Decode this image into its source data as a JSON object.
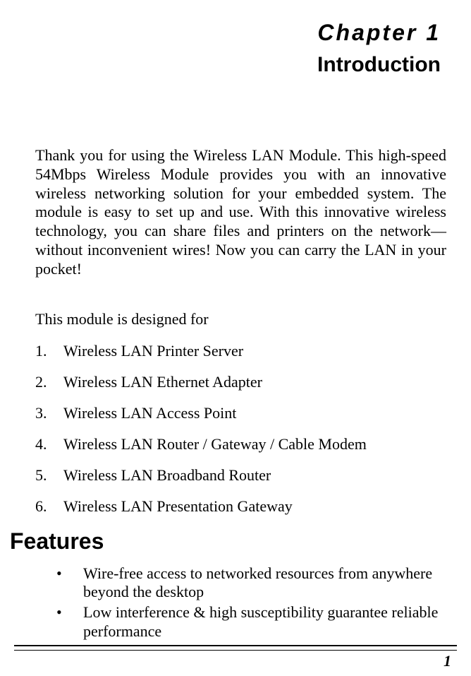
{
  "header": {
    "chapter_label": "Chapter 1",
    "chapter_title": "Introduction"
  },
  "intro": {
    "paragraph": "Thank you for using the Wireless LAN Module. This high-speed 54Mbps Wireless  Module provides you with an innovative wireless networking solution for your embedded system.  The module is easy to set up and use. With this innovative wireless technology, you can share files and printers on the network—without inconvenient wires! Now you can carry the LAN in your pocket!"
  },
  "designed_for": {
    "lead_in": "This module is designed for",
    "items": [
      {
        "num": "1.",
        "text": "Wireless LAN Printer Server"
      },
      {
        "num": "2.",
        "text": "Wireless LAN Ethernet Adapter"
      },
      {
        "num": "3.",
        "text": "Wireless LAN Access Point"
      },
      {
        "num": "4.",
        "text": "Wireless LAN Router / Gateway / Cable Modem"
      },
      {
        "num": "5.",
        "text": "Wireless LAN Broadband Router"
      },
      {
        "num": "6.",
        "text": "Wireless LAN Presentation Gateway"
      }
    ]
  },
  "features": {
    "heading": "Features",
    "bullets": [
      "Wire-free access to networked resources from anywhere beyond the desktop",
      "Low interference & high susceptibility guarantee reliable performance"
    ]
  },
  "footer": {
    "page_number": "1"
  },
  "style": {
    "page_bg": "#ffffff",
    "text_color": "#000000",
    "body_font": "Times New Roman",
    "heading_font": "Arial",
    "chapter_label_fontsize": 32,
    "chapter_title_fontsize": 30,
    "body_fontsize": 22,
    "section_heading_fontsize": 32,
    "rule_color": "#000000",
    "rule_thick": 2.5,
    "rule_thin": 1
  }
}
